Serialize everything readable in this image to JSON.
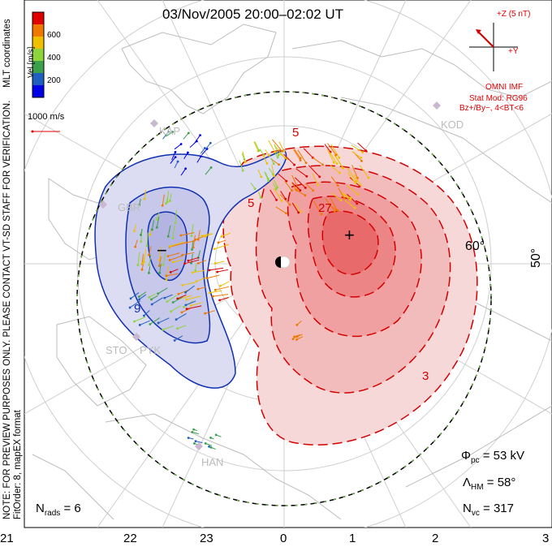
{
  "title": "03/Nov/2005 20:00–02:02 UT",
  "coordinates_note": "MLT coordinates",
  "side_note_line1": "NOTE: FOR PREVIEW PURPOSES ONLY. PLEASE CONTACT VT-SD STAFF FOR VERIFICATION.",
  "side_note_line2": "FitOrder: 8, mapEX format",
  "colorbar": {
    "unit": "Vel [m/s]",
    "ticks": [
      "600",
      "400",
      "200"
    ],
    "colors": [
      "#0000e6",
      "#1f5fbf",
      "#3aa04a",
      "#8fd43a",
      "#f0c000",
      "#f07800",
      "#e00000"
    ]
  },
  "velocity_scale": "1000 m/s",
  "imf": {
    "axis_z": "+Z (5 nT)",
    "axis_y": "+Y",
    "source": "OMNI IMF",
    "stat_mod": "Stat Mod: RG96",
    "condition": "Bz+/By−, 4<BT<6"
  },
  "latitude_labels": [
    "60°",
    "50°"
  ],
  "mlt_labels": [
    "21",
    "22",
    "23",
    "0",
    "1",
    "2",
    "3"
  ],
  "contour_labels": [
    "5",
    "27",
    "3",
    "5",
    "9"
  ],
  "potential_markers": {
    "min": "−",
    "max": "+"
  },
  "stations": [
    "KAP",
    "GBR",
    "STO",
    "PYK",
    "HAN",
    "KOD"
  ],
  "stats": {
    "phi_pc": "53 kV",
    "lambda_hm": "58°",
    "n_vc": "317",
    "n_rads": "6"
  },
  "stat_labels": {
    "phi": "Φ",
    "phi_sub": "pc",
    "lambda": "Λ",
    "lambda_sub": "HM",
    "nvc": "N",
    "nvc_sub": "vc",
    "nrads": "N",
    "nrads_sub": "rads"
  },
  "colors": {
    "positive": "#d40000",
    "negative": "#1030b0",
    "boundary": "#7ac943"
  }
}
